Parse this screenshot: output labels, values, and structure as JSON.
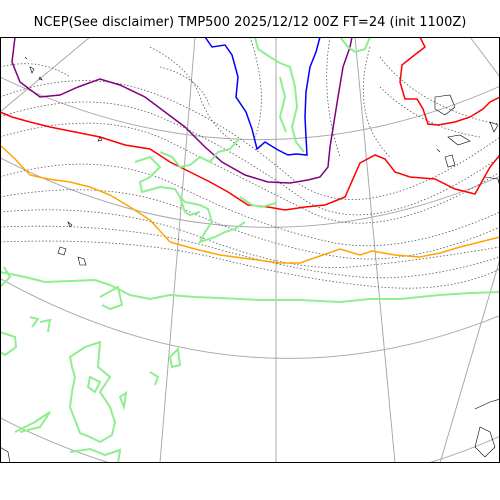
{
  "title": "NCEP(See disclaimer) TMP500 2025/12/12 00Z FT=24 (init 1100Z)",
  "map": {
    "projection": "polar stereographic",
    "background_color": "#ffffff",
    "graticule_color": "#aaaaaa",
    "isotherm_color": "#555555",
    "coastline_color": "#000000",
    "contours": [
      {
        "label": "coldest isotherm",
        "color": "#0000ff"
      },
      {
        "label": "cold isotherm",
        "color": "#800080"
      },
      {
        "label": "warm isotherm",
        "color": "#ff0000"
      },
      {
        "label": "warmer isotherm",
        "color": "#ffa500"
      },
      {
        "label": "land outline",
        "color": "#90ee90"
      }
    ]
  }
}
